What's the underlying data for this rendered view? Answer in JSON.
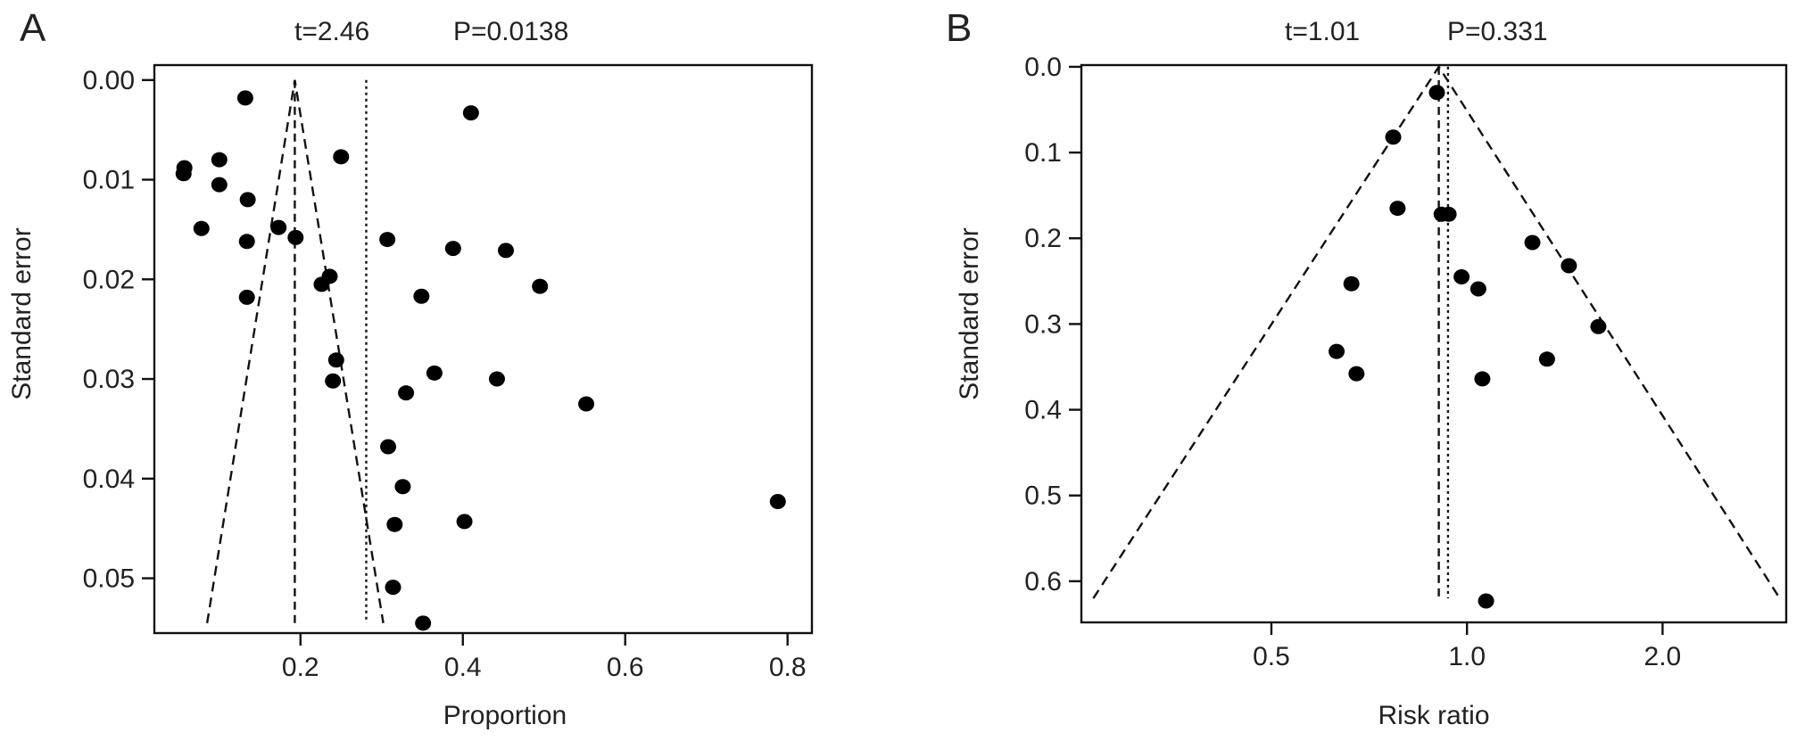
{
  "chart_data": [
    {
      "type": "scatter",
      "panel": "A",
      "stats": {
        "t_label": "t=2.46",
        "p_label": "P=0.0138"
      },
      "xlabel": "Proportion",
      "ylabel": "Standard error",
      "x_ticks": [
        0.2,
        0.4,
        0.6,
        0.8
      ],
      "x_tick_labels": [
        "0.2",
        "0.4",
        "0.6",
        "0.8"
      ],
      "y_ticks": [
        0.0,
        0.01,
        0.02,
        0.03,
        0.04,
        0.05
      ],
      "y_tick_labels": [
        "0.00",
        "0.01",
        "0.02",
        "0.03",
        "0.04",
        "0.05"
      ],
      "xlim": [
        0.02,
        0.83
      ],
      "ylim": [
        0.0555,
        -0.0015
      ],
      "y_inverted": true,
      "grid": false,
      "funnel": {
        "center": 0.193,
        "apex_se": 0.0,
        "base_se": 0.0545,
        "base_left": 0.085,
        "base_right": 0.302
      },
      "pooled_estimate": 0.281,
      "points": [
        {
          "x": 0.132,
          "y": 0.0018
        },
        {
          "x": 0.41,
          "y": 0.0033
        },
        {
          "x": 0.25,
          "y": 0.0077
        },
        {
          "x": 0.1,
          "y": 0.008
        },
        {
          "x": 0.057,
          "y": 0.0088
        },
        {
          "x": 0.056,
          "y": 0.0094
        },
        {
          "x": 0.1,
          "y": 0.0105
        },
        {
          "x": 0.135,
          "y": 0.012
        },
        {
          "x": 0.078,
          "y": 0.0149
        },
        {
          "x": 0.173,
          "y": 0.0148
        },
        {
          "x": 0.194,
          "y": 0.0158
        },
        {
          "x": 0.134,
          "y": 0.0162
        },
        {
          "x": 0.307,
          "y": 0.016
        },
        {
          "x": 0.388,
          "y": 0.0169
        },
        {
          "x": 0.453,
          "y": 0.0171
        },
        {
          "x": 0.236,
          "y": 0.0197
        },
        {
          "x": 0.226,
          "y": 0.0205
        },
        {
          "x": 0.495,
          "y": 0.0207
        },
        {
          "x": 0.134,
          "y": 0.0218
        },
        {
          "x": 0.349,
          "y": 0.0217
        },
        {
          "x": 0.244,
          "y": 0.0281
        },
        {
          "x": 0.365,
          "y": 0.0294
        },
        {
          "x": 0.442,
          "y": 0.03
        },
        {
          "x": 0.24,
          "y": 0.0302
        },
        {
          "x": 0.33,
          "y": 0.0314
        },
        {
          "x": 0.552,
          "y": 0.0325
        },
        {
          "x": 0.308,
          "y": 0.0368
        },
        {
          "x": 0.326,
          "y": 0.0408
        },
        {
          "x": 0.788,
          "y": 0.0423
        },
        {
          "x": 0.316,
          "y": 0.0446
        },
        {
          "x": 0.402,
          "y": 0.0443
        },
        {
          "x": 0.314,
          "y": 0.0509
        },
        {
          "x": 0.351,
          "y": 0.0545
        }
      ]
    },
    {
      "type": "scatter",
      "panel": "B",
      "stats": {
        "t_label": "t=1.01",
        "p_label": "P=0.331"
      },
      "xlabel": "Risk ratio",
      "ylabel": "Standard error",
      "x_scale": "log",
      "x_ticks": [
        0.5,
        1.0,
        2.0
      ],
      "x_tick_labels": [
        "0.5",
        "1.0",
        "2.0"
      ],
      "y_ticks": [
        0.0,
        0.1,
        0.2,
        0.3,
        0.4,
        0.5,
        0.6
      ],
      "y_tick_labels": [
        "0.0",
        "0.1",
        "0.2",
        "0.3",
        "0.4",
        "0.5",
        "0.6"
      ],
      "xlim": [
        0.255,
        3.1
      ],
      "ylim": [
        0.648,
        -0.002
      ],
      "y_inverted": true,
      "grid": false,
      "funnel": {
        "center": 0.905,
        "apex_se": 0.0,
        "base_se": 0.62,
        "base_left": 0.266,
        "base_right": 3.03
      },
      "pooled_estimate": 0.935,
      "points": [
        {
          "x": 0.899,
          "y": 0.03
        },
        {
          "x": 0.77,
          "y": 0.082
        },
        {
          "x": 0.782,
          "y": 0.165
        },
        {
          "x": 0.914,
          "y": 0.172
        },
        {
          "x": 0.937,
          "y": 0.172
        },
        {
          "x": 1.261,
          "y": 0.205
        },
        {
          "x": 1.435,
          "y": 0.232
        },
        {
          "x": 0.981,
          "y": 0.245
        },
        {
          "x": 1.041,
          "y": 0.259
        },
        {
          "x": 0.664,
          "y": 0.253
        },
        {
          "x": 1.593,
          "y": 0.303
        },
        {
          "x": 0.63,
          "y": 0.332
        },
        {
          "x": 1.328,
          "y": 0.341
        },
        {
          "x": 0.676,
          "y": 0.358
        },
        {
          "x": 1.056,
          "y": 0.364
        },
        {
          "x": 1.07,
          "y": 0.623
        }
      ]
    }
  ]
}
